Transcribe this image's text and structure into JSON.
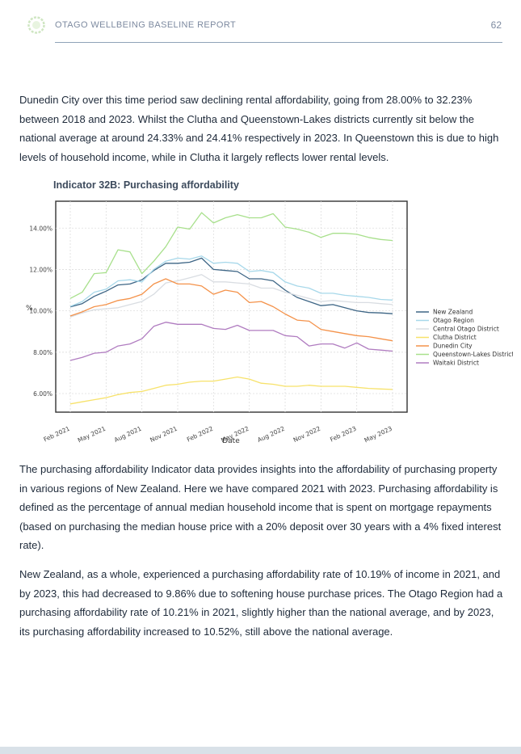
{
  "header": {
    "report_title": "OTAGO WELLBEING BASELINE REPORT",
    "page_number": "62"
  },
  "paragraphs": {
    "intro": "Dunedin City over this time period saw declining rental affordability, going from 28.00% to 32.23% between 2018 and 2023. Whilst the Clutha and Queenstown-Lakes districts currently sit below the national average at around 24.33% and 24.41% respectively in 2023. In Queenstown this is due to high levels of household income, while in Clutha it largely reflects lower rental levels.",
    "p1": "The purchasing affordability Indicator data provides insights into the affordability of purchasing property in various regions of New Zealand. Here we have compared 2021 with 2023. Purchasing affordability is defined as the percentage of annual median household income that is spent on mortgage repayments (based on purchasing the median house price with a 20% deposit over 30 years with a 4% fixed interest rate).",
    "p2": "New Zealand, as a whole, experienced a purchasing affordability rate of 10.19% of income in 2021, and by 2023, this had decreased to 9.86% due to softening house purchase prices. The Otago Region had a purchasing affordability rate of 10.21% in 2021, slightly higher than the national average, and by 2023, its purchasing affordability increased to 10.52%, still above the national average."
  },
  "chart_data": {
    "type": "line",
    "title": "Indicator 32B: Purchasing affordability",
    "xlabel": "Date",
    "ylabel": "%",
    "x": [
      "2021-02",
      "2021-03",
      "2021-04",
      "2021-05",
      "2021-06",
      "2021-07",
      "2021-08",
      "2021-09",
      "2021-10",
      "2021-11",
      "2021-12",
      "2022-01",
      "2022-02",
      "2022-03",
      "2022-04",
      "2022-05",
      "2022-06",
      "2022-07",
      "2022-08",
      "2022-09",
      "2022-10",
      "2022-11",
      "2022-12",
      "2023-01",
      "2023-02",
      "2023-03",
      "2023-04",
      "2023-05"
    ],
    "x_ticks": [
      "2021-02",
      "2021-05",
      "2021-08",
      "2021-11",
      "2022-02",
      "2022-05",
      "2022-08",
      "2022-11",
      "2023-02",
      "2023-05"
    ],
    "x_tick_labels": [
      "Feb 2021",
      "May 2021",
      "Aug 2021",
      "Nov 2021",
      "Feb 2022",
      "May 2022",
      "Aug 2022",
      "Nov 2022",
      "Feb 2023",
      "May 2023"
    ],
    "y_ticks": [
      6,
      8,
      10,
      12,
      14
    ],
    "y_tick_labels": [
      "6.00%",
      "8.00%",
      "10.00%",
      "12.00%",
      "14.00%"
    ],
    "ylim": [
      5.1,
      15.3
    ],
    "grid": true,
    "legend_position": "right-outside",
    "series": [
      {
        "name": "New Zealand",
        "color": "#3d6585",
        "dash": "solid",
        "values": [
          10.19,
          10.35,
          10.7,
          10.95,
          11.25,
          11.3,
          11.5,
          11.95,
          12.3,
          12.3,
          12.35,
          12.55,
          12.0,
          11.95,
          11.9,
          11.55,
          11.55,
          11.45,
          11.0,
          10.65,
          10.45,
          10.25,
          10.3,
          10.15,
          10.0,
          9.92,
          9.9,
          9.86
        ]
      },
      {
        "name": "Otago Region",
        "color": "#a7d8ea",
        "dash": "solid",
        "values": [
          10.21,
          10.45,
          10.9,
          11.05,
          11.45,
          11.5,
          11.4,
          12.0,
          12.4,
          12.55,
          12.5,
          12.65,
          12.3,
          12.35,
          12.3,
          11.9,
          11.95,
          11.85,
          11.4,
          11.2,
          11.1,
          10.85,
          10.85,
          10.75,
          10.7,
          10.65,
          10.55,
          10.52
        ]
      },
      {
        "name": "Central Otago District",
        "color": "#d9dde2",
        "dash": "solid",
        "values": [
          9.7,
          9.9,
          10.05,
          10.1,
          10.15,
          10.3,
          10.45,
          10.8,
          11.35,
          11.45,
          11.6,
          11.75,
          11.4,
          11.4,
          11.35,
          11.3,
          11.1,
          11.1,
          10.9,
          10.75,
          10.6,
          10.45,
          10.5,
          10.45,
          10.4,
          10.4,
          10.35,
          10.3
        ]
      },
      {
        "name": "Clutha District",
        "color": "#f7e26b",
        "dash": "solid",
        "values": [
          5.5,
          5.6,
          5.7,
          5.8,
          5.95,
          6.05,
          6.1,
          6.25,
          6.4,
          6.45,
          6.55,
          6.6,
          6.6,
          6.7,
          6.8,
          6.7,
          6.5,
          6.45,
          6.35,
          6.35,
          6.4,
          6.35,
          6.35,
          6.35,
          6.3,
          6.25,
          6.22,
          6.2
        ]
      },
      {
        "name": "Dunedin City",
        "color": "#f4924a",
        "dash": "solid",
        "values": [
          9.75,
          9.95,
          10.2,
          10.3,
          10.5,
          10.6,
          10.8,
          11.3,
          11.55,
          11.3,
          11.3,
          11.2,
          10.8,
          11.0,
          10.9,
          10.4,
          10.45,
          10.2,
          9.85,
          9.55,
          9.5,
          9.1,
          9.0,
          8.9,
          8.8,
          8.75,
          8.65,
          8.55
        ]
      },
      {
        "name": "Queenstown-Lakes District",
        "color": "#a8e08c",
        "dash": "solid",
        "values": [
          10.6,
          10.9,
          11.8,
          11.85,
          12.95,
          12.85,
          11.8,
          12.4,
          13.1,
          14.05,
          13.95,
          14.75,
          14.25,
          14.5,
          14.65,
          14.5,
          14.5,
          14.7,
          14.05,
          13.95,
          13.8,
          13.55,
          13.75,
          13.75,
          13.7,
          13.55,
          13.45,
          13.4
        ]
      },
      {
        "name": "Waitaki District",
        "color": "#b07cc0",
        "dash": "solid",
        "values": [
          7.6,
          7.75,
          7.95,
          8.0,
          8.3,
          8.4,
          8.65,
          9.25,
          9.45,
          9.35,
          9.35,
          9.35,
          9.15,
          9.1,
          9.3,
          9.05,
          9.05,
          9.05,
          8.8,
          8.75,
          8.3,
          8.4,
          8.4,
          8.2,
          8.45,
          8.15,
          8.1,
          8.05
        ]
      }
    ]
  }
}
